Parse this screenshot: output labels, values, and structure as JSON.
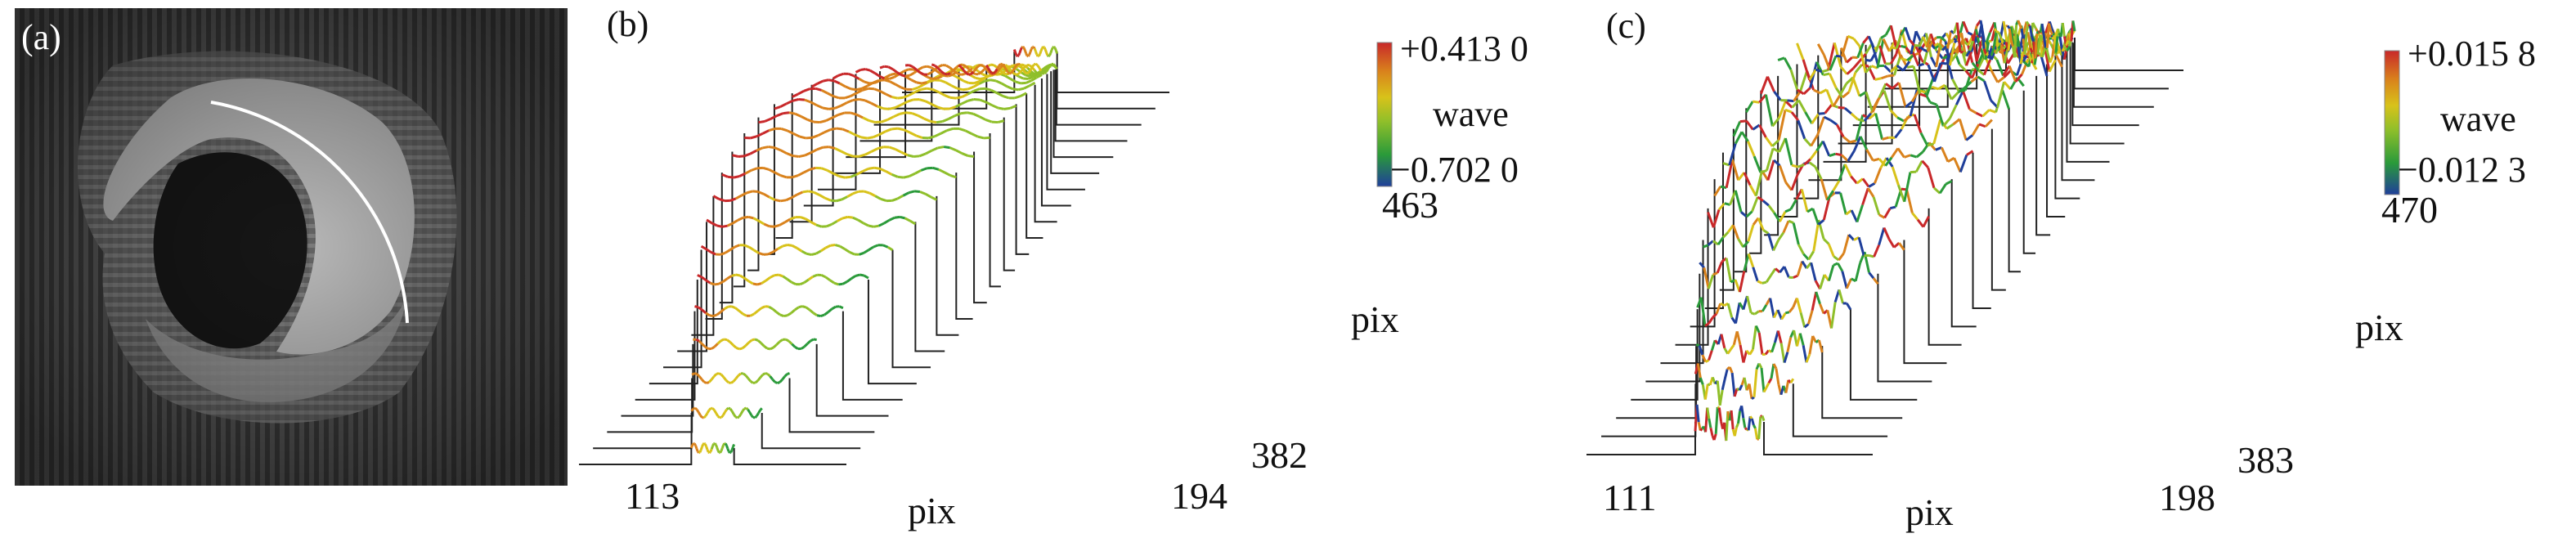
{
  "panels": {
    "a": {
      "label": "(a)"
    },
    "b": {
      "label": "(b)",
      "legend": {
        "max": "+0.413 0",
        "unit": "wave",
        "min": "−0.702 0"
      },
      "x_axis": {
        "start": "113",
        "end": "194",
        "label": "pix"
      },
      "y_axis": {
        "start": "382",
        "end": "463",
        "label": "pix"
      }
    },
    "c": {
      "label": "(c)",
      "legend": {
        "max": "+0.015 8",
        "unit": "wave",
        "min": "−0.012 3"
      },
      "x_axis": {
        "start": "111",
        "end": "198",
        "label": "pix"
      },
      "y_axis": {
        "start": "383",
        "end": "470",
        "label": "pix"
      }
    }
  },
  "colormap": [
    "#1f3f9a",
    "#2a9a3a",
    "#8fbf2a",
    "#d8c21a",
    "#d9821c",
    "#c8282a"
  ]
}
